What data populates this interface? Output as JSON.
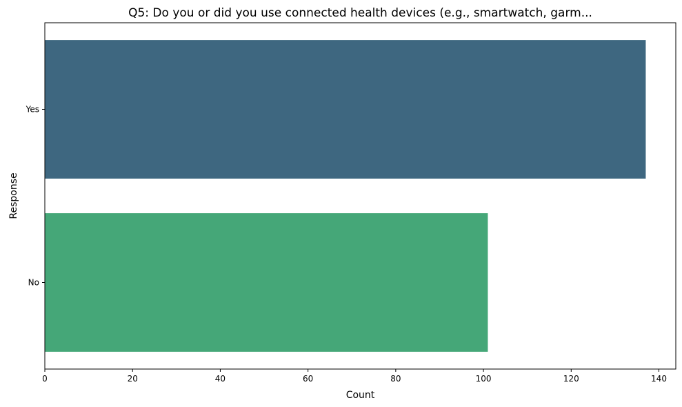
{
  "chart_data": {
    "type": "bar",
    "orientation": "horizontal",
    "title": "Q5: Do you or did you use connected health devices (e.g., smartwatch, garm...",
    "xlabel": "Count",
    "ylabel": "Response",
    "categories": [
      "Yes",
      "No"
    ],
    "values": [
      137,
      101
    ],
    "colors": [
      "#3e6780",
      "#45a778"
    ],
    "xlim": [
      0,
      143.85
    ],
    "xticks": [
      0,
      20,
      40,
      60,
      80,
      100,
      120,
      140
    ],
    "grid": false,
    "legend": "none"
  }
}
